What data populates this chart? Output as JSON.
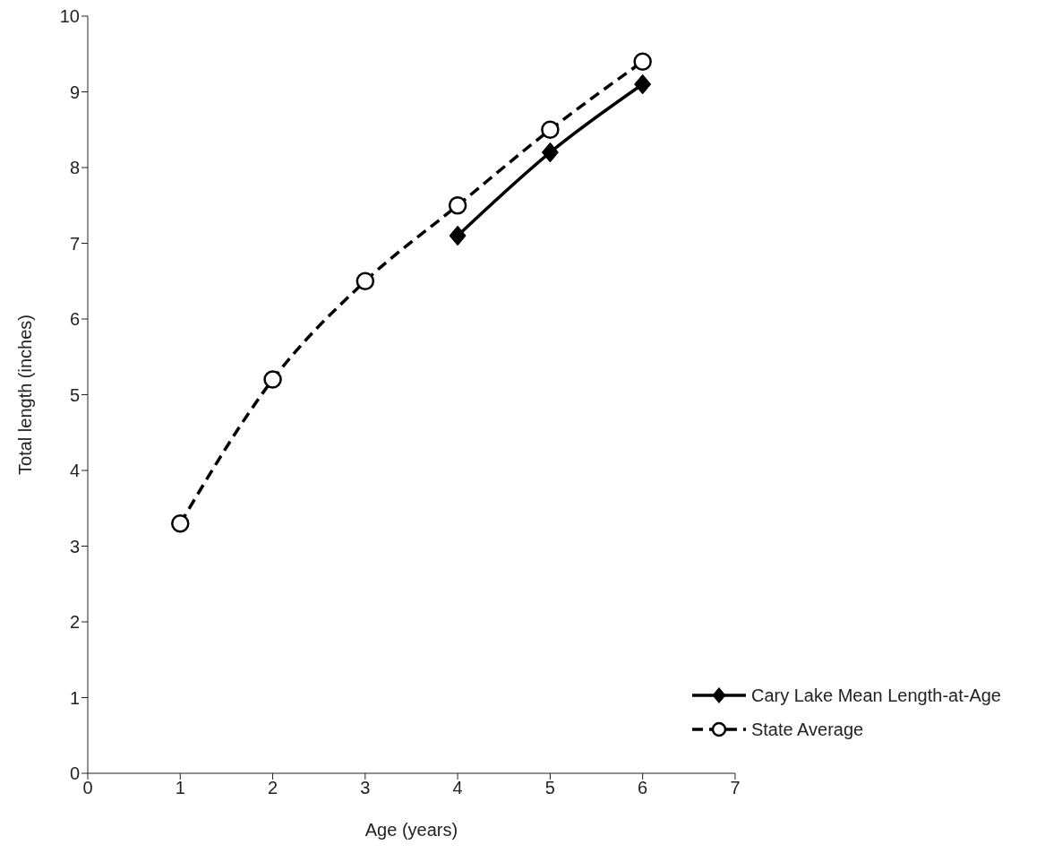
{
  "chart_data": {
    "type": "line",
    "xlabel": "Age (years)",
    "ylabel": "Total length (inches)",
    "xlim": [
      0,
      7
    ],
    "xticks": [
      0,
      1,
      2,
      3,
      4,
      5,
      6,
      7
    ],
    "ylim": [
      0,
      10
    ],
    "yticks": [
      0,
      1,
      2,
      3,
      4,
      5,
      6,
      7,
      8,
      9,
      10
    ],
    "grid": false,
    "legend": "bottom right",
    "series": [
      {
        "name": "Cary Lake Mean Length-at-Age",
        "color": "#000000",
        "marker": "diamond",
        "line_style": "solid",
        "x": [
          4,
          5,
          6
        ],
        "values": [
          7.1,
          8.2,
          9.1
        ]
      },
      {
        "name": "State Average",
        "color": "#000000",
        "marker": "circle",
        "line_style": "dashed",
        "x": [
          1,
          2,
          3,
          4,
          5,
          6
        ],
        "values": [
          3.3,
          5.2,
          6.5,
          7.5,
          8.5,
          9.4
        ]
      }
    ]
  }
}
